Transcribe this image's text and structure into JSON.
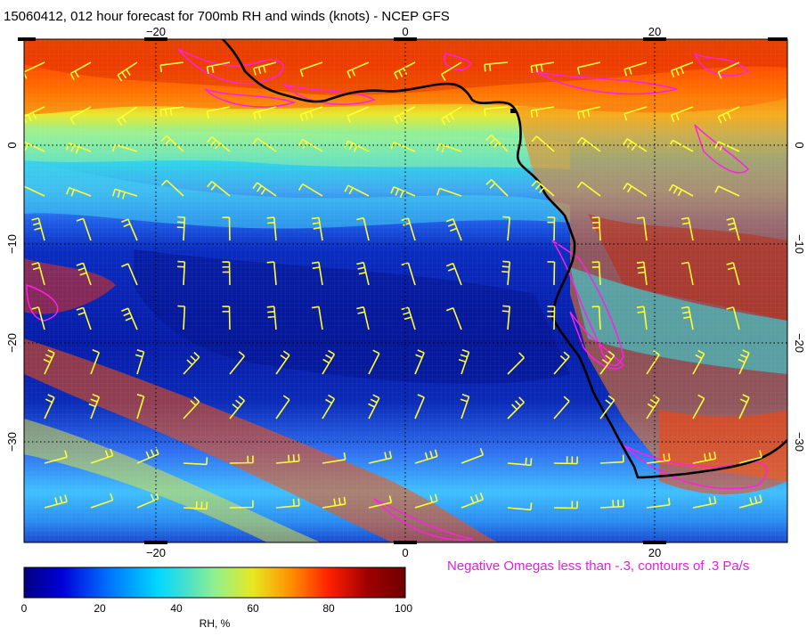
{
  "title": "15060412, 012 hour forecast for 700mb RH and winds (knots) - NCEP GFS",
  "map": {
    "projection": "cylindrical",
    "lon_range": [
      -30,
      30
    ],
    "lat_range": [
      -40,
      10
    ],
    "lon_ticks": [
      -20,
      0,
      20
    ],
    "lat_ticks": [
      0,
      -10,
      -20,
      -30
    ],
    "lon_tick_labels": [
      "−20",
      "0",
      "20"
    ],
    "lat_tick_labels": [
      "0",
      "−10",
      "−20",
      "−30"
    ],
    "gridlines": "dotted",
    "coastline_color": "#000000",
    "wind_barb_color": "#ffff33",
    "omega_contour_color": "#ff1fe6"
  },
  "overlay_note": "Negative Omegas less than -.3, contours of .3 Pa/s",
  "colorbar": {
    "title": "RH, %",
    "min": 0,
    "max": 100,
    "tick_labels": [
      "0",
      "20",
      "40",
      "60",
      "80",
      "100"
    ],
    "colormap": [
      "#000080",
      "#0000d8",
      "#0070ff",
      "#00d8ff",
      "#40e0d0",
      "#90f090",
      "#e8e820",
      "#ff9000",
      "#ff2000",
      "#a00000",
      "#700000"
    ]
  }
}
